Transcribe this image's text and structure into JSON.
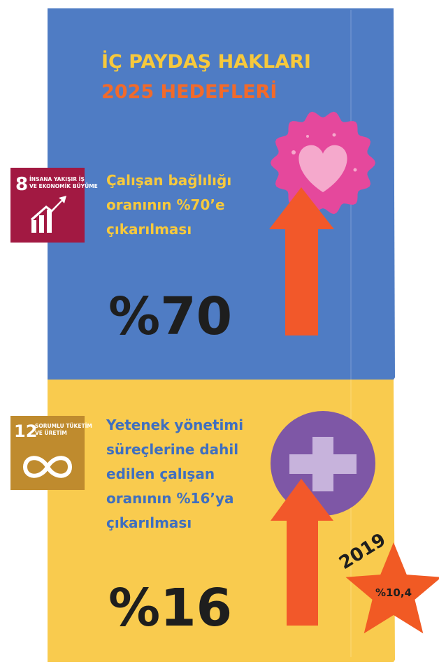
{
  "header": {
    "title_line1": "İÇ PAYDAŞ HAKLARI",
    "title_line2": "2025 HEDEFLERİ"
  },
  "sections": [
    {
      "sdg_number": "8",
      "sdg_label_lines": [
        "İNSANA YAKIŞIR İŞ",
        "VE EKONOMİK BÜYÜME"
      ],
      "text_lines": [
        "Çalışan bağlılığı",
        "oranının %70’e",
        "çıkarılması"
      ],
      "big_value": "%70"
    },
    {
      "sdg_number": "12",
      "sdg_label_lines": [
        "SORUMLU TÜKETİM",
        "VE ÜRETİM"
      ],
      "text_lines": [
        "Yetenek yönetimi",
        "süreçlerine dahil",
        "edilen çalışan",
        "oranının %16’ya",
        "çıkarılması"
      ],
      "big_value": "%16"
    }
  ],
  "star": {
    "year": "2019",
    "value": "%10,4"
  }
}
